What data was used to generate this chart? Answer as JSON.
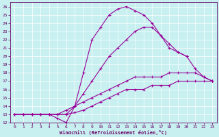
{
  "bg_color": "#c8f0f0",
  "line_color": "#990099",
  "label_color": "#660066",
  "xlim": [
    -0.5,
    23.5
  ],
  "ylim": [
    12,
    26.5
  ],
  "xticks": [
    0,
    1,
    2,
    3,
    4,
    5,
    6,
    7,
    8,
    9,
    10,
    11,
    12,
    13,
    14,
    15,
    16,
    17,
    18,
    19,
    20,
    21,
    22,
    23
  ],
  "yticks": [
    12,
    13,
    14,
    15,
    16,
    17,
    18,
    19,
    20,
    21,
    22,
    23,
    24,
    25,
    26
  ],
  "xlabel": "Windchill (Refroidissement éolien,°C)",
  "curves": [
    {
      "x": [
        0,
        1,
        2,
        3,
        4,
        5,
        6,
        7,
        8,
        9,
        10,
        11,
        12,
        13,
        14,
        15,
        16,
        17,
        18,
        19,
        20
      ],
      "y": [
        13,
        13,
        13,
        13,
        13,
        12.5,
        12,
        14,
        18,
        22,
        23.5,
        25,
        25.7,
        26,
        25.5,
        25,
        24,
        22.5,
        21,
        20.5,
        20
      ]
    },
    {
      "x": [
        0,
        1,
        2,
        3,
        4,
        5,
        6,
        7,
        8,
        9,
        10,
        11,
        12,
        13,
        14,
        15,
        16,
        17,
        18,
        19,
        20,
        21,
        22,
        23
      ],
      "y": [
        13,
        13,
        13,
        13,
        13,
        13,
        13,
        14,
        15.5,
        17,
        18.5,
        20,
        21,
        22,
        23,
        23.5,
        23.5,
        22.5,
        21.5,
        20.5,
        20,
        18.5,
        17.5,
        17
      ]
    },
    {
      "x": [
        0,
        1,
        2,
        3,
        4,
        5,
        6,
        7,
        8,
        9,
        10,
        11,
        12,
        13,
        14,
        15,
        16,
        17,
        18,
        19,
        20,
        21,
        22,
        23
      ],
      "y": [
        13,
        13,
        13,
        13,
        13,
        13,
        13.5,
        14,
        14.5,
        15,
        15.5,
        16,
        16.5,
        17,
        17.5,
        17.5,
        17.5,
        17.5,
        18,
        18,
        18,
        18,
        17.5,
        17
      ]
    },
    {
      "x": [
        0,
        1,
        2,
        3,
        4,
        5,
        6,
        7,
        8,
        9,
        10,
        11,
        12,
        13,
        14,
        15,
        16,
        17,
        18,
        19,
        20,
        21,
        22,
        23
      ],
      "y": [
        13,
        13,
        13,
        13,
        13,
        13,
        13,
        13.2,
        13.5,
        14,
        14.5,
        15,
        15.5,
        16,
        16,
        16,
        16.5,
        16.5,
        16.5,
        17,
        17,
        17,
        17,
        17
      ]
    }
  ],
  "markersize": 2.0,
  "linewidth": 0.8
}
